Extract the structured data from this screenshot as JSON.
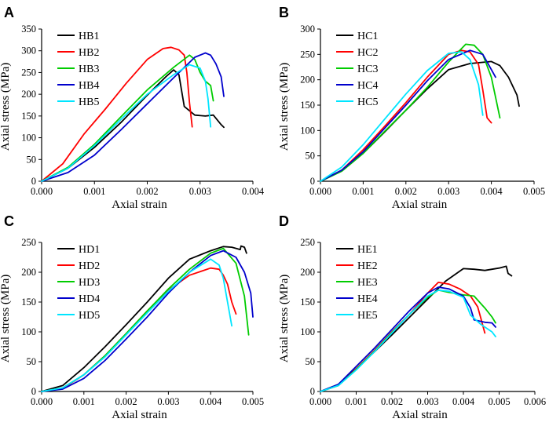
{
  "chart_data": [
    {
      "type": "line",
      "panel_label": "A",
      "xlabel": "Axial strain",
      "ylabel": "Axial stress (MPa)",
      "xlim": [
        0,
        0.004
      ],
      "ylim": [
        0,
        350
      ],
      "xticks": [
        "0.000",
        "0.001",
        "0.002",
        "0.003",
        "0.004"
      ],
      "yticks": [
        "0",
        "50",
        "100",
        "150",
        "200",
        "250",
        "300",
        "350"
      ],
      "legend_position": "top-left",
      "series": [
        {
          "name": "HB1",
          "color": "#000000",
          "x": [
            0,
            0.0005,
            0.001,
            0.0015,
            0.002,
            0.00235,
            0.0025,
            0.0026,
            0.0027,
            0.0029,
            0.0031,
            0.00325,
            0.0034,
            0.00345
          ],
          "y": [
            0,
            30,
            78,
            135,
            198,
            240,
            256,
            245,
            172,
            152,
            150,
            152,
            130,
            124
          ]
        },
        {
          "name": "HB2",
          "color": "#ff0000",
          "x": [
            0,
            0.0004,
            0.0008,
            0.0012,
            0.0016,
            0.002,
            0.0023,
            0.00245,
            0.0026,
            0.0027,
            0.00275,
            0.0028,
            0.00285
          ],
          "y": [
            0,
            40,
            108,
            165,
            225,
            280,
            305,
            308,
            302,
            290,
            250,
            180,
            125
          ]
        },
        {
          "name": "HB3",
          "color": "#00cc00",
          "x": [
            0,
            0.0005,
            0.001,
            0.0015,
            0.002,
            0.0025,
            0.0028,
            0.0029,
            0.003,
            0.0031,
            0.0032,
            0.00325
          ],
          "y": [
            0,
            32,
            85,
            148,
            210,
            262,
            290,
            280,
            250,
            230,
            220,
            185
          ]
        },
        {
          "name": "HB4",
          "color": "#0000cc",
          "x": [
            0,
            0.0005,
            0.001,
            0.0015,
            0.002,
            0.0025,
            0.0029,
            0.0031,
            0.0032,
            0.0033,
            0.00335,
            0.0034,
            0.00345
          ],
          "y": [
            0,
            20,
            60,
            118,
            178,
            238,
            285,
            295,
            290,
            270,
            255,
            240,
            195
          ]
        },
        {
          "name": "HB5",
          "color": "#00e5ff",
          "x": [
            0,
            0.0005,
            0.001,
            0.0015,
            0.002,
            0.0025,
            0.0028,
            0.003,
            0.0031,
            0.00315,
            0.0032
          ],
          "y": [
            0,
            30,
            82,
            142,
            200,
            245,
            268,
            260,
            230,
            190,
            125
          ]
        }
      ]
    },
    {
      "type": "line",
      "panel_label": "B",
      "xlabel": "Axial strain",
      "ylabel": "Axial stress (MPa)",
      "xlim": [
        0,
        0.005
      ],
      "ylim": [
        0,
        300
      ],
      "xticks": [
        "0.000",
        "0.001",
        "0.002",
        "0.003",
        "0.004",
        "0.005"
      ],
      "yticks": [
        "0",
        "50",
        "100",
        "150",
        "200",
        "250",
        "300"
      ],
      "legend_position": "top-left",
      "series": [
        {
          "name": "HC1",
          "color": "#000000",
          "x": [
            0,
            0.0005,
            0.001,
            0.0015,
            0.002,
            0.0025,
            0.003,
            0.0035,
            0.004,
            0.0042,
            0.0044,
            0.0046,
            0.00465
          ],
          "y": [
            0,
            20,
            55,
            97,
            140,
            182,
            220,
            232,
            236,
            228,
            205,
            170,
            148
          ]
        },
        {
          "name": "HC2",
          "color": "#ff0000",
          "x": [
            0,
            0.0005,
            0.001,
            0.0015,
            0.002,
            0.0025,
            0.003,
            0.0033,
            0.0035,
            0.0037,
            0.0038,
            0.0039,
            0.004
          ],
          "y": [
            0,
            22,
            62,
            108,
            155,
            205,
            250,
            258,
            255,
            230,
            180,
            125,
            115
          ]
        },
        {
          "name": "HC3",
          "color": "#00cc00",
          "x": [
            0,
            0.0005,
            0.001,
            0.0015,
            0.002,
            0.0025,
            0.003,
            0.0034,
            0.0036,
            0.0038,
            0.004,
            0.0042
          ],
          "y": [
            0,
            20,
            55,
            98,
            140,
            185,
            235,
            270,
            268,
            250,
            205,
            125
          ]
        },
        {
          "name": "HC4",
          "color": "#0000cc",
          "x": [
            0,
            0.0005,
            0.001,
            0.0015,
            0.002,
            0.0025,
            0.003,
            0.0035,
            0.0038,
            0.004,
            0.0041
          ],
          "y": [
            0,
            22,
            58,
            104,
            150,
            198,
            240,
            258,
            250,
            220,
            205
          ]
        },
        {
          "name": "HC5",
          "color": "#00e5ff",
          "x": [
            0,
            0.0005,
            0.001,
            0.0015,
            0.002,
            0.0025,
            0.003,
            0.0033,
            0.0035,
            0.0037,
            0.0038
          ],
          "y": [
            0,
            28,
            72,
            122,
            172,
            218,
            252,
            255,
            240,
            190,
            130
          ]
        }
      ]
    },
    {
      "type": "line",
      "panel_label": "C",
      "xlabel": "Axial strain",
      "ylabel": "Axial stress (MPa)",
      "xlim": [
        0,
        0.005
      ],
      "ylim": [
        0,
        250
      ],
      "xticks": [
        "0.000",
        "0.001",
        "0.002",
        "0.003",
        "0.004",
        "0.005"
      ],
      "yticks": [
        "0",
        "50",
        "100",
        "150",
        "200",
        "250"
      ],
      "legend_position": "top-left",
      "series": [
        {
          "name": "HD1",
          "color": "#000000",
          "x": [
            0,
            0.0005,
            0.001,
            0.0015,
            0.002,
            0.0025,
            0.003,
            0.0035,
            0.004,
            0.0043,
            0.0045,
            0.0047,
            0.00472,
            0.0048,
            0.00485
          ],
          "y": [
            0,
            10,
            40,
            75,
            112,
            150,
            190,
            222,
            236,
            243,
            242,
            238,
            244,
            242,
            232
          ]
        },
        {
          "name": "HD2",
          "color": "#ff0000",
          "x": [
            0,
            0.0005,
            0.001,
            0.0015,
            0.002,
            0.0025,
            0.003,
            0.0035,
            0.004,
            0.0042,
            0.0043,
            0.0044,
            0.0045,
            0.0046
          ],
          "y": [
            0,
            5,
            28,
            60,
            97,
            135,
            170,
            195,
            207,
            205,
            195,
            180,
            150,
            130
          ]
        },
        {
          "name": "HD3",
          "color": "#00cc00",
          "x": [
            0,
            0.0005,
            0.001,
            0.0015,
            0.002,
            0.0025,
            0.003,
            0.0035,
            0.004,
            0.0043,
            0.0046,
            0.0048,
            0.0049
          ],
          "y": [
            0,
            6,
            28,
            60,
            97,
            135,
            172,
            205,
            232,
            240,
            215,
            160,
            95
          ]
        },
        {
          "name": "HD4",
          "color": "#0000cc",
          "x": [
            0,
            0.0005,
            0.001,
            0.0015,
            0.002,
            0.0025,
            0.003,
            0.0035,
            0.004,
            0.0043,
            0.0046,
            0.0048,
            0.00495,
            0.005
          ],
          "y": [
            0,
            4,
            22,
            52,
            88,
            125,
            165,
            200,
            228,
            236,
            225,
            200,
            165,
            125
          ]
        },
        {
          "name": "HD5",
          "color": "#00e5ff",
          "x": [
            0,
            0.0005,
            0.001,
            0.0015,
            0.002,
            0.0025,
            0.003,
            0.0035,
            0.004,
            0.0042,
            0.0043,
            0.0044,
            0.0045
          ],
          "y": [
            0,
            6,
            28,
            58,
            95,
            132,
            168,
            200,
            222,
            212,
            190,
            150,
            110
          ]
        }
      ]
    },
    {
      "type": "line",
      "panel_label": "D",
      "xlabel": "Axial strain",
      "ylabel": "Axial stress (MPa)",
      "xlim": [
        0,
        0.006
      ],
      "ylim": [
        0,
        250
      ],
      "xticks": [
        "0.000",
        "0.001",
        "0.002",
        "0.003",
        "0.004",
        "0.005",
        "0.006"
      ],
      "yticks": [
        "0",
        "50",
        "100",
        "150",
        "200",
        "250"
      ],
      "legend_position": "top-left",
      "series": [
        {
          "name": "HE1",
          "color": "#000000",
          "x": [
            0,
            0.0005,
            0.001,
            0.0015,
            0.002,
            0.0025,
            0.003,
            0.0035,
            0.004,
            0.0043,
            0.0046,
            0.005,
            0.0052,
            0.00525,
            0.0053,
            0.00535
          ],
          "y": [
            0,
            12,
            38,
            66,
            95,
            125,
            155,
            185,
            206,
            205,
            203,
            207,
            210,
            198,
            196,
            194
          ]
        },
        {
          "name": "HE2",
          "color": "#ff0000",
          "x": [
            0,
            0.0005,
            0.001,
            0.0015,
            0.002,
            0.0025,
            0.003,
            0.0033,
            0.0036,
            0.0039,
            0.0042,
            0.0044,
            0.0045,
            0.0046
          ],
          "y": [
            0,
            10,
            38,
            68,
            100,
            130,
            165,
            183,
            180,
            172,
            160,
            142,
            120,
            98
          ]
        },
        {
          "name": "HE3",
          "color": "#00cc00",
          "x": [
            0,
            0.0005,
            0.001,
            0.0015,
            0.002,
            0.0025,
            0.003,
            0.0033,
            0.0036,
            0.004,
            0.0043,
            0.0046,
            0.0048,
            0.0049
          ],
          "y": [
            0,
            10,
            37,
            67,
            99,
            130,
            158,
            170,
            166,
            162,
            160,
            140,
            125,
            115
          ]
        },
        {
          "name": "HE4",
          "color": "#0000cc",
          "x": [
            0,
            0.0005,
            0.001,
            0.0015,
            0.002,
            0.0025,
            0.003,
            0.0033,
            0.0036,
            0.004,
            0.0042,
            0.0043,
            0.0046,
            0.0048,
            0.0049
          ],
          "y": [
            0,
            12,
            42,
            72,
            104,
            136,
            165,
            175,
            172,
            160,
            140,
            120,
            116,
            115,
            108
          ]
        },
        {
          "name": "HE5",
          "color": "#00e5ff",
          "x": [
            0,
            0.0005,
            0.001,
            0.0015,
            0.002,
            0.0025,
            0.003,
            0.0033,
            0.0036,
            0.004,
            0.0042,
            0.0045,
            0.0048,
            0.0049
          ],
          "y": [
            0,
            10,
            36,
            66,
            98,
            130,
            160,
            170,
            168,
            158,
            128,
            112,
            100,
            92
          ]
        }
      ]
    }
  ]
}
